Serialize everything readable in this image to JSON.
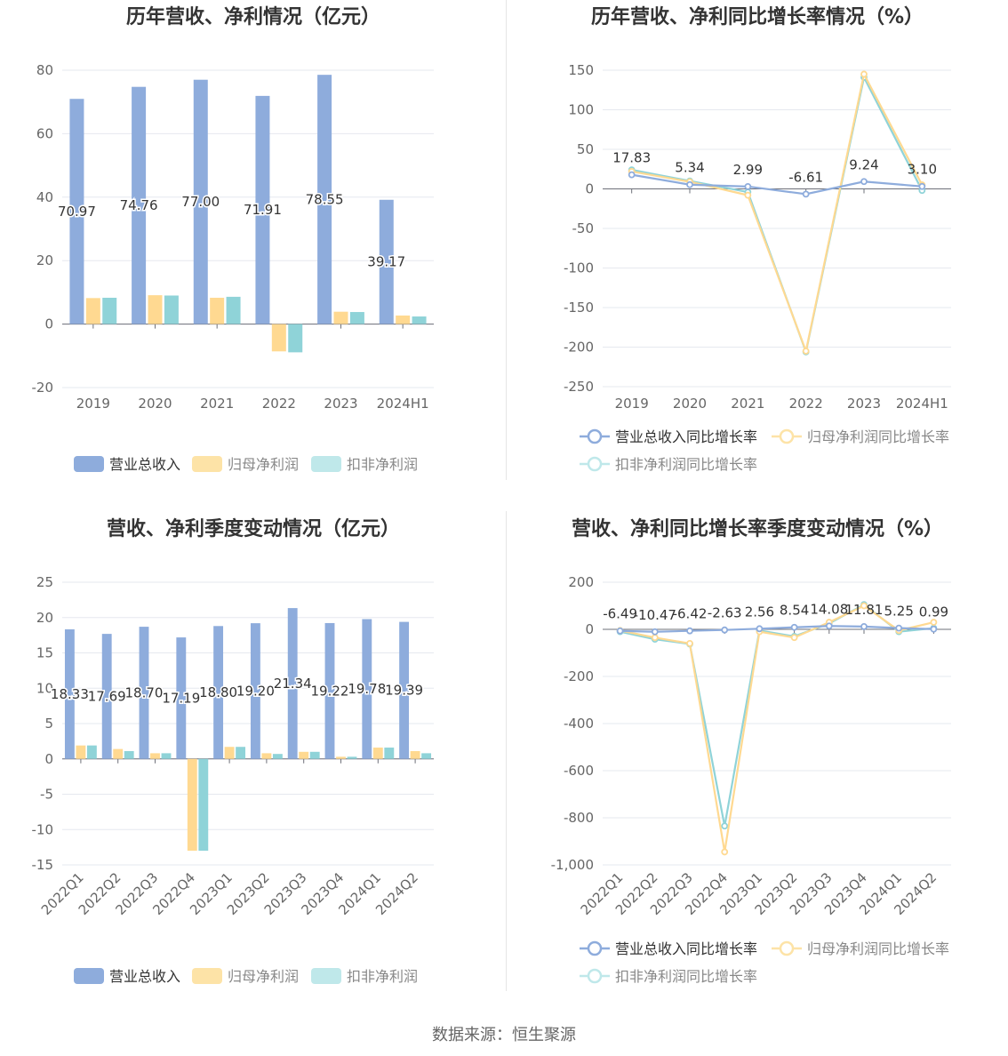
{
  "colors": {
    "revenue": "#8eacdc",
    "net_profit": "#fde3a7",
    "net_profit_fill": "#ffd991",
    "deducted": "#8fd3d8",
    "deducted_legend": "#bfe8ea",
    "grid": "#e6e8ef",
    "axis": "#666666",
    "title": "#333333"
  },
  "source_text": "数据来源：恒生聚源",
  "chart_data": [
    {
      "id": "annual_amount",
      "type": "bar",
      "title": "历年营收、净利情况（亿元）",
      "categories": [
        "2019",
        "2020",
        "2021",
        "2022",
        "2023",
        "2024H1"
      ],
      "ylim": [
        -20,
        80
      ],
      "yticks": [
        -20,
        0,
        20,
        40,
        60,
        80
      ],
      "series": [
        {
          "name": "营业总收入",
          "values": [
            70.97,
            74.76,
            77.0,
            71.91,
            78.55,
            39.17
          ],
          "labels": [
            "70.97",
            "74.76",
            "77.00",
            "71.91",
            "78.55",
            "39.17"
          ]
        },
        {
          "name": "归母净利润",
          "values": [
            8.2,
            9.1,
            8.3,
            -8.6,
            3.9,
            2.7
          ]
        },
        {
          "name": "扣非净利润",
          "values": [
            8.3,
            9.0,
            8.6,
            -8.9,
            3.8,
            2.4
          ]
        }
      ],
      "legend": "bottom",
      "grid": true
    },
    {
      "id": "annual_growth",
      "type": "line",
      "title": "历年营收、净利同比增长率情况（%）",
      "categories": [
        "2019",
        "2020",
        "2021",
        "2022",
        "2023",
        "2024H1"
      ],
      "ylim": [
        -250,
        150
      ],
      "yticks": [
        -250,
        -200,
        -150,
        -100,
        -50,
        0,
        50,
        100,
        150
      ],
      "series": [
        {
          "name": "营业总收入同比增长率",
          "values": [
            17.83,
            5.34,
            2.99,
            -6.61,
            9.24,
            3.1
          ],
          "labels": [
            "17.83",
            "5.34",
            "2.99",
            "-6.61",
            "9.24",
            "3.10"
          ]
        },
        {
          "name": "归母净利润同比增长率",
          "values": [
            22,
            9,
            -8,
            -205,
            145,
            5
          ]
        },
        {
          "name": "扣非净利润同比增长率",
          "values": [
            24,
            10,
            -4,
            -206,
            141,
            -2
          ]
        }
      ],
      "legend": "bottom",
      "grid": true
    },
    {
      "id": "quarterly_amount",
      "type": "bar",
      "title": "营收、净利季度变动情况（亿元）",
      "categories": [
        "2022Q1",
        "2022Q2",
        "2022Q3",
        "2022Q4",
        "2023Q1",
        "2023Q2",
        "2023Q3",
        "2023Q4",
        "2024Q1",
        "2024Q2"
      ],
      "ylim": [
        -15,
        25
      ],
      "yticks": [
        -15,
        -10,
        -5,
        0,
        5,
        10,
        15,
        20,
        25
      ],
      "series": [
        {
          "name": "营业总收入",
          "values": [
            18.33,
            17.69,
            18.7,
            17.19,
            18.8,
            19.2,
            21.34,
            19.22,
            19.78,
            19.39
          ],
          "labels": [
            "18.33",
            "17.69",
            "18.70",
            "17.19",
            "18.80",
            "19.20",
            "21.34",
            "19.22",
            "19.78",
            "19.39"
          ]
        },
        {
          "name": "归母净利润",
          "values": [
            1.9,
            1.4,
            0.8,
            -13.0,
            1.7,
            0.8,
            1.0,
            0.3,
            1.6,
            1.1
          ]
        },
        {
          "name": "扣非净利润",
          "values": [
            1.9,
            1.1,
            0.8,
            -13.0,
            1.7,
            0.7,
            1.0,
            0.3,
            1.6,
            0.8
          ]
        }
      ],
      "legend": "bottom",
      "grid": true
    },
    {
      "id": "quarterly_growth",
      "type": "line",
      "title": "营收、净利同比增长率季度变动情况（%）",
      "categories": [
        "2022Q1",
        "2022Q2",
        "2022Q3",
        "2022Q4",
        "2023Q1",
        "2023Q2",
        "2023Q3",
        "2023Q4",
        "2024Q1",
        "2024Q2"
      ],
      "ylim": [
        -1000,
        200
      ],
      "yticks": [
        -1000,
        -800,
        -600,
        -400,
        -200,
        0,
        200
      ],
      "ytick_labels": [
        "-1,000",
        "-800",
        "-600",
        "-400",
        "-200",
        "0",
        "200"
      ],
      "series": [
        {
          "name": "营业总收入同比增长率",
          "values": [
            -6.49,
            -10.47,
            -6.42,
            -2.63,
            2.56,
            8.54,
            14.08,
            11.81,
            5.25,
            0.99
          ],
          "labels": [
            "-6.49",
            "-10.47",
            "-6.42",
            "-2.63",
            "2.56",
            "8.54",
            "14.08",
            "11.81",
            "5.25",
            "0.99"
          ]
        },
        {
          "name": "归母净利润同比增长率",
          "values": [
            -5,
            -35,
            -60,
            -945,
            -10,
            -35,
            30,
            100,
            -5,
            30
          ]
        },
        {
          "name": "扣非净利润同比增长率",
          "values": [
            -10,
            -42,
            -62,
            -835,
            -5,
            -30,
            25,
            105,
            -10,
            5
          ]
        }
      ],
      "legend": "bottom",
      "grid": true
    }
  ]
}
